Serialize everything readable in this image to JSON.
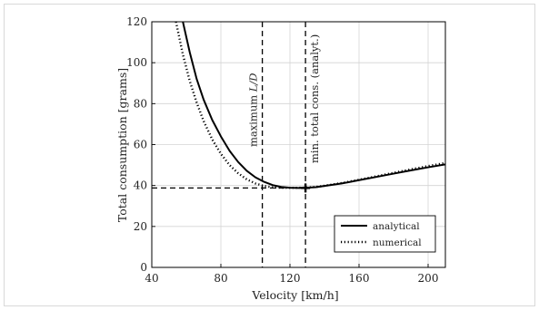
{
  "chart_data": {
    "type": "line",
    "title": "",
    "xlabel": "Velocity [km/h]",
    "ylabel": "Total consumption [grams]",
    "xlim": [
      40,
      210
    ],
    "ylim": [
      0,
      120
    ],
    "x_ticks": [
      40,
      80,
      120,
      160,
      200
    ],
    "y_ticks": [
      0,
      20,
      40,
      60,
      80,
      100,
      120
    ],
    "grid": true,
    "legend_position": "bottom-right",
    "series": [
      {
        "name": "analytical",
        "line_style": "solid",
        "color": "#000000",
        "x": [
          58,
          62,
          66,
          70,
          75,
          80,
          85,
          90,
          95,
          100,
          105,
          110,
          115,
          120,
          125,
          129,
          135,
          140,
          150,
          160,
          170,
          180,
          190,
          200,
          210
        ],
        "y": [
          120,
          105,
          92,
          82,
          72,
          64,
          57,
          51.5,
          47.2,
          44,
          41.8,
          40.2,
          39.3,
          38.9,
          38.8,
          38.9,
          39.2,
          39.8,
          41,
          42.6,
          44.2,
          45.8,
          47.4,
          48.9,
          50.3
        ]
      },
      {
        "name": "numerical",
        "line_style": "dotted",
        "color": "#000000",
        "x": [
          54,
          58,
          62,
          66,
          70,
          75,
          80,
          85,
          90,
          95,
          100,
          105,
          110,
          115,
          120,
          125,
          129,
          135,
          140,
          150,
          160,
          170,
          180,
          190,
          200,
          210
        ],
        "y": [
          120,
          104,
          91,
          80.5,
          71.5,
          62.5,
          55.5,
          50,
          46,
          43,
          41,
          39.8,
          39.1,
          38.9,
          38.9,
          38.9,
          39,
          39.3,
          39.9,
          41.2,
          42.8,
          44.5,
          46.2,
          47.9,
          49.5,
          51
        ]
      }
    ],
    "reference_lines": [
      {
        "orientation": "vertical",
        "x": 104,
        "style": "dashed",
        "label": "maximum L/D"
      },
      {
        "orientation": "vertical",
        "x": 129,
        "style": "dashed",
        "label": "min. total cons. (analyt.)"
      },
      {
        "orientation": "horizontal",
        "y": 38.8,
        "x_end": 129,
        "style": "dashed"
      }
    ],
    "markers": [
      {
        "x": 129,
        "y": 38.8,
        "shape": "plus"
      }
    ],
    "annotations": {
      "max_ld_prefix": "maximum ",
      "max_ld_italic": "L/D",
      "min_total": "min. total cons. (analyt.)"
    },
    "colors": {
      "grid": "#d4d4d4",
      "axes": "#000000",
      "frame_border": "#d9d9d9"
    }
  }
}
